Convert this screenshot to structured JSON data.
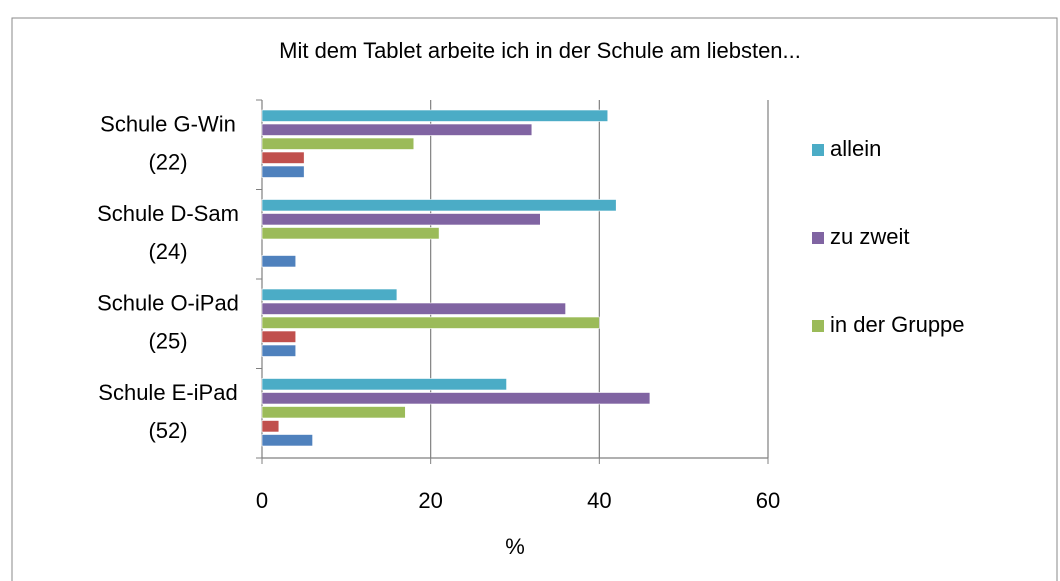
{
  "chart_data": {
    "type": "bar",
    "orientation": "horizontal",
    "title": "Mit dem Tablet arbeite ich in der Schule am liebsten...",
    "categories": [
      [
        "Schule G-Win",
        "(22)"
      ],
      [
        "Schule D-Sam",
        "(24)"
      ],
      [
        "Schule O-iPad",
        "(25)"
      ],
      [
        "Schule E-iPad",
        "(52)"
      ]
    ],
    "series": [
      {
        "name": "allein",
        "color": "#4bacc6",
        "values": [
          41,
          42,
          16,
          29
        ]
      },
      {
        "name": "zu zweit",
        "color": "#8064a2",
        "values": [
          32,
          33,
          36,
          46
        ]
      },
      {
        "name": "in der Gruppe",
        "color": "#9bbb59",
        "values": [
          18,
          21,
          40,
          17
        ]
      },
      {
        "color": "#c0504d",
        "values": [
          5,
          0,
          4,
          2
        ]
      },
      {
        "color": "#4f81bd",
        "values": [
          5,
          4,
          4,
          6
        ]
      }
    ],
    "xlim": [
      0,
      60
    ],
    "xticks": [
      0,
      20,
      40,
      60
    ],
    "xlabel": "%",
    "grid": true,
    "legend": "right"
  }
}
